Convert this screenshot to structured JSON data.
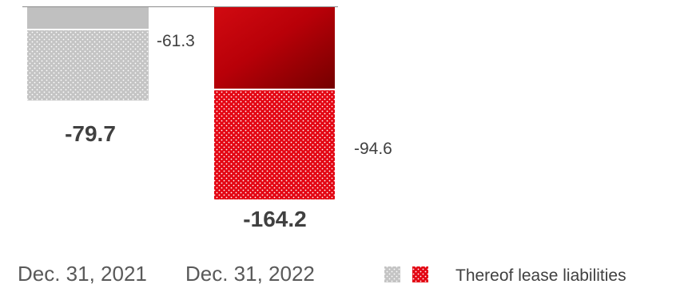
{
  "chart_data": {
    "type": "bar",
    "stacked": true,
    "orientation": "negative-down",
    "categories": [
      "Dec. 31, 2021",
      "Dec. 31, 2022"
    ],
    "totals": [
      -79.7,
      -164.2
    ],
    "total_labels": [
      "-79.7",
      "-164.2"
    ],
    "series": [
      {
        "key": "other",
        "values": [
          -18.4,
          -69.6
        ],
        "labels": [
          "",
          ""
        ]
      },
      {
        "key": "lease",
        "name": "Thereof lease liabilities",
        "values": [
          -61.3,
          -94.6
        ],
        "labels": [
          "-61.3",
          "-94.6"
        ]
      }
    ],
    "colors": {
      "bar_2021": "#c0c0c0",
      "bar_2022_top_start": "#d10a11",
      "bar_2022_top_end": "#7a0000",
      "bar_2022_dotted": "#e30613",
      "legend_grey": "#d0d0d0",
      "legend_red": "#e30613",
      "baseline": "#8c8c8c"
    },
    "legend": {
      "placement": "bottom-right",
      "label": "Thereof lease liabilities"
    },
    "grid": false
  }
}
